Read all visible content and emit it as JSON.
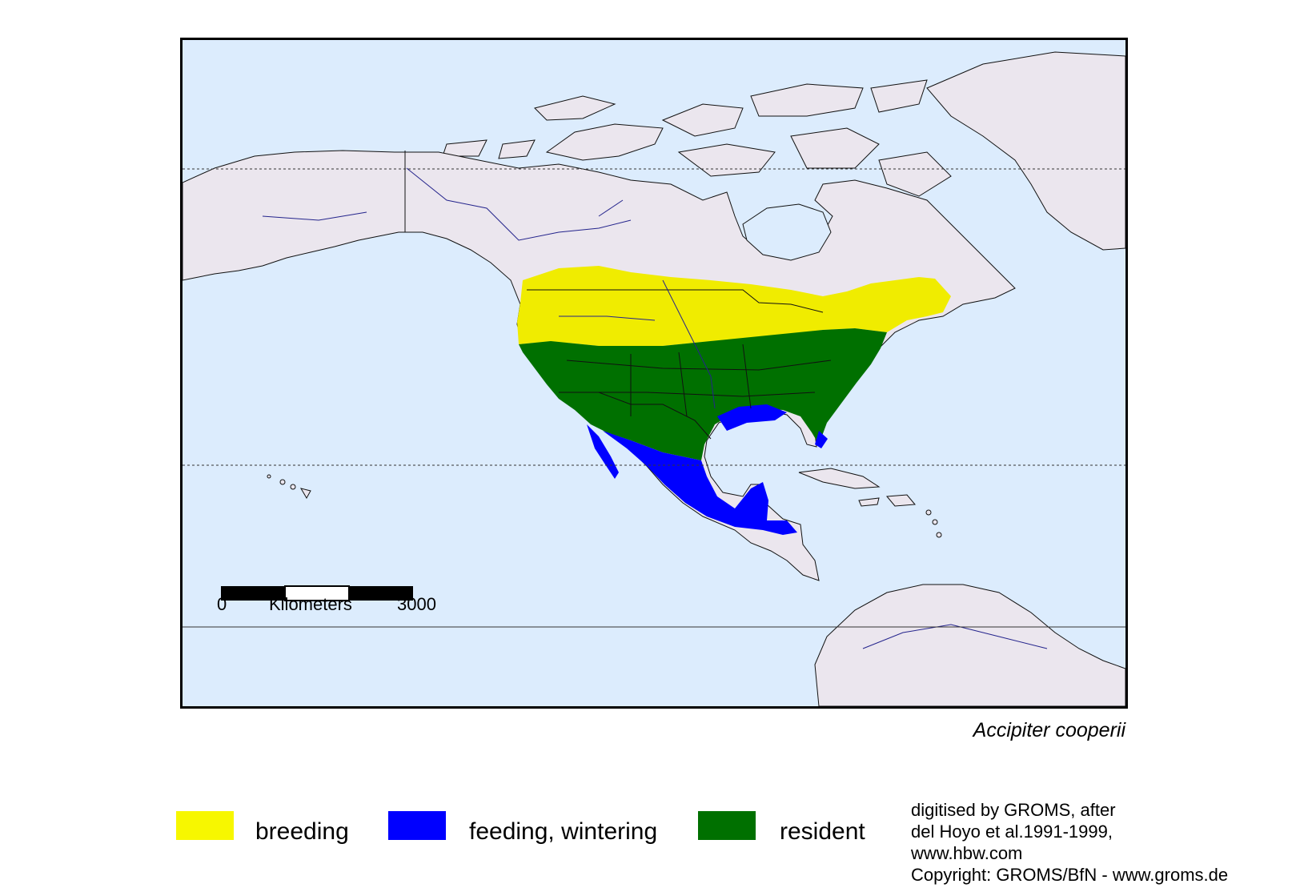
{
  "map": {
    "species": "Accipiter cooperii",
    "colors": {
      "ocean": "#dcecfd",
      "land": "#ebe6ee",
      "breeding": "#f0ec00",
      "wintering": "#0000ff",
      "resident": "#007000"
    }
  },
  "scale_bar": {
    "start": "0",
    "unit": "Kilometers",
    "end": "3000"
  },
  "legend": {
    "items": [
      {
        "label": "breeding",
        "color": "#f7f700"
      },
      {
        "label": "feeding, wintering",
        "color": "#0000ff"
      },
      {
        "label": "resident",
        "color": "#007000"
      }
    ]
  },
  "credits": {
    "line1": "digitised by GROMS, after",
    "line2": "del Hoyo et al.1991-1999,",
    "line3": "www.hbw.com",
    "line4": "Copyright: GROMS/BfN - www.groms.de"
  }
}
